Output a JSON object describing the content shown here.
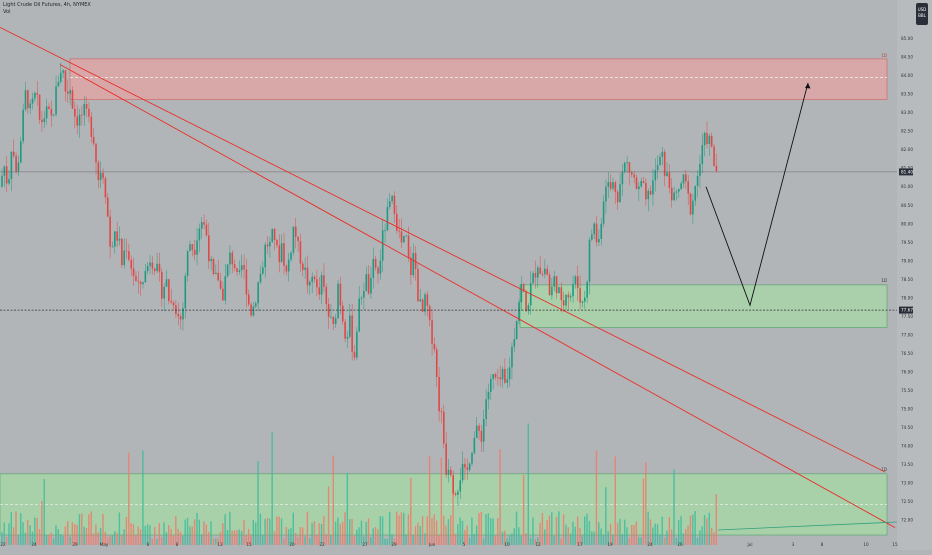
{
  "header": {
    "title": "Light Crude Oil Futures, 4h, NYMEX",
    "indicator": "Vol"
  },
  "currency_badge": {
    "line1": "USD",
    "line2": "BBL"
  },
  "colors": {
    "background": "#b2b5b7",
    "up": "#1e9a82",
    "down": "#e04848",
    "trendline": "#e8302a",
    "supply_zone": "#e8a3a3",
    "demand_zone": "#a6d6a8",
    "volume_up": "#3dbb9c",
    "volume_down": "#f07a6a",
    "projection": "#111111"
  },
  "chart_data": {
    "type": "candlestick",
    "symbol": "Light Crude Oil Futures, 4h, NYMEX",
    "x_labels": [
      "22",
      "24",
      "29",
      "May",
      "6",
      "8",
      "13",
      "15",
      "20",
      "22",
      "27",
      "29",
      "Jun",
      "5",
      "10",
      "12",
      "17",
      "19",
      "24",
      "26",
      "Jul",
      "3",
      "8",
      "10",
      "15",
      "17"
    ],
    "y_ticks": [
      72.0,
      72.5,
      73.0,
      73.5,
      74.0,
      74.5,
      75.0,
      75.5,
      76.0,
      76.5,
      77.0,
      77.5,
      78.0,
      78.5,
      79.0,
      79.5,
      80.0,
      80.5,
      81.0,
      81.5,
      82.0,
      82.5,
      83.0,
      83.5,
      84.0,
      84.5,
      85.0
    ],
    "ylim": [
      71.6,
      85.5
    ],
    "current_price_label": "81.40",
    "horizontal_level_label": "77.67",
    "price_path": [
      [
        0,
        81.0
      ],
      [
        4,
        81.6
      ],
      [
        8,
        81.0
      ],
      [
        12,
        82.3
      ],
      [
        16,
        81.3
      ],
      [
        20,
        82.1
      ],
      [
        26,
        83.6
      ],
      [
        30,
        83.0
      ],
      [
        36,
        83.5
      ],
      [
        40,
        82.7
      ],
      [
        46,
        83.0
      ],
      [
        52,
        82.8
      ],
      [
        58,
        83.9
      ],
      [
        62,
        84.3
      ],
      [
        66,
        83.5
      ],
      [
        70,
        83.7
      ],
      [
        74,
        83.0
      ],
      [
        78,
        82.8
      ],
      [
        84,
        83.0
      ],
      [
        90,
        82.7
      ],
      [
        94,
        82.3
      ],
      [
        98,
        81.2
      ],
      [
        102,
        81.6
      ],
      [
        106,
        80.8
      ],
      [
        110,
        79.4
      ],
      [
        114,
        79.6
      ],
      [
        118,
        79.7
      ],
      [
        122,
        78.9
      ],
      [
        126,
        79.5
      ],
      [
        130,
        79.0
      ],
      [
        134,
        78.6
      ],
      [
        138,
        78.2
      ],
      [
        142,
        78.5
      ],
      [
        146,
        78.7
      ],
      [
        150,
        79.1
      ],
      [
        154,
        79.0
      ],
      [
        158,
        78.6
      ],
      [
        162,
        78.2
      ],
      [
        166,
        78.5
      ],
      [
        170,
        77.8
      ],
      [
        174,
        78.0
      ],
      [
        178,
        77.5
      ],
      [
        182,
        77.4
      ],
      [
        186,
        78.9
      ],
      [
        190,
        79.5
      ],
      [
        194,
        79.3
      ],
      [
        198,
        79.9
      ],
      [
        202,
        80.1
      ],
      [
        206,
        79.8
      ],
      [
        210,
        79.0
      ],
      [
        214,
        78.4
      ],
      [
        218,
        78.6
      ],
      [
        222,
        78.0
      ],
      [
        226,
        78.6
      ],
      [
        230,
        79.1
      ],
      [
        234,
        79.0
      ],
      [
        238,
        78.3
      ],
      [
        242,
        78.9
      ],
      [
        246,
        78.4
      ],
      [
        250,
        77.6
      ],
      [
        254,
        77.8
      ],
      [
        258,
        78.4
      ],
      [
        262,
        78.8
      ],
      [
        266,
        79.5
      ],
      [
        270,
        79.4
      ],
      [
        274,
        79.8
      ],
      [
        278,
        79.0
      ],
      [
        282,
        79.5
      ],
      [
        286,
        78.6
      ],
      [
        290,
        79.2
      ],
      [
        294,
        80.0
      ],
      [
        298,
        79.3
      ],
      [
        302,
        79.0
      ],
      [
        306,
        78.6
      ],
      [
        310,
        78.2
      ],
      [
        314,
        78.8
      ],
      [
        318,
        77.9
      ],
      [
        322,
        78.5
      ],
      [
        326,
        77.8
      ],
      [
        330,
        77.4
      ],
      [
        334,
        77.1
      ],
      [
        338,
        78.4
      ],
      [
        342,
        77.6
      ],
      [
        346,
        77.0
      ],
      [
        350,
        77.3
      ],
      [
        354,
        76.3
      ],
      [
        358,
        77.6
      ],
      [
        362,
        78.2
      ],
      [
        366,
        78.5
      ],
      [
        370,
        78.1
      ],
      [
        374,
        79.0
      ],
      [
        378,
        78.6
      ],
      [
        382,
        79.5
      ],
      [
        386,
        80.1
      ],
      [
        390,
        80.5
      ],
      [
        394,
        80.6
      ],
      [
        398,
        79.8
      ],
      [
        402,
        79.4
      ],
      [
        406,
        79.6
      ],
      [
        410,
        78.6
      ],
      [
        414,
        79.2
      ],
      [
        418,
        78.1
      ],
      [
        422,
        77.5
      ],
      [
        426,
        78.0
      ],
      [
        430,
        77.1
      ],
      [
        434,
        76.9
      ],
      [
        438,
        75.3
      ],
      [
        442,
        74.7
      ],
      [
        446,
        73.4
      ],
      [
        450,
        73.6
      ],
      [
        454,
        72.8
      ],
      [
        458,
        73.0
      ],
      [
        462,
        73.4
      ],
      [
        466,
        73.1
      ],
      [
        470,
        73.8
      ],
      [
        474,
        74.2
      ],
      [
        478,
        74.4
      ],
      [
        482,
        74.3
      ],
      [
        486,
        75.3
      ],
      [
        490,
        75.6
      ],
      [
        494,
        75.9
      ],
      [
        498,
        75.6
      ],
      [
        502,
        75.9
      ],
      [
        506,
        75.5
      ],
      [
        510,
        76.3
      ],
      [
        514,
        77.0
      ],
      [
        518,
        77.8
      ],
      [
        522,
        78.4
      ],
      [
        526,
        77.6
      ],
      [
        530,
        78.2
      ],
      [
        534,
        78.6
      ],
      [
        538,
        79.0
      ],
      [
        542,
        78.6
      ],
      [
        546,
        78.9
      ],
      [
        550,
        78.0
      ],
      [
        554,
        78.5
      ],
      [
        558,
        78.3
      ],
      [
        562,
        77.6
      ],
      [
        566,
        78.3
      ],
      [
        570,
        78.0
      ],
      [
        574,
        78.5
      ],
      [
        578,
        78.3
      ],
      [
        582,
        77.8
      ],
      [
        586,
        78.2
      ],
      [
        590,
        79.6
      ],
      [
        594,
        80.0
      ],
      [
        598,
        79.3
      ],
      [
        602,
        80.4
      ],
      [
        606,
        81.2
      ],
      [
        610,
        80.9
      ],
      [
        614,
        81.1
      ],
      [
        618,
        80.8
      ],
      [
        622,
        81.3
      ],
      [
        626,
        81.7
      ],
      [
        630,
        81.4
      ],
      [
        634,
        81.2
      ],
      [
        638,
        80.8
      ],
      [
        642,
        81.1
      ],
      [
        646,
        80.5
      ],
      [
        650,
        80.9
      ],
      [
        654,
        81.2
      ],
      [
        658,
        81.6
      ],
      [
        662,
        81.8
      ],
      [
        666,
        81.3
      ],
      [
        670,
        81.0
      ],
      [
        674,
        80.6
      ],
      [
        678,
        80.8
      ],
      [
        682,
        81.2
      ],
      [
        686,
        81.0
      ],
      [
        690,
        80.4
      ],
      [
        694,
        80.8
      ],
      [
        698,
        81.4
      ],
      [
        702,
        81.9
      ],
      [
        706,
        82.4
      ],
      [
        710,
        82.2
      ],
      [
        714,
        81.6
      ],
      [
        718,
        81.4
      ]
    ],
    "supply_zone": {
      "price_low": 83.35,
      "price_high": 84.45,
      "price_mid": 83.95,
      "label": "1D"
    },
    "demand_zone": {
      "price_low": 77.2,
      "price_high": 78.35,
      "label": "1D"
    },
    "low_zone": {
      "price_low": 71.6,
      "price_high": 73.25,
      "label": "1D"
    },
    "trendlines": [
      {
        "from": [
          0,
          85.3
        ],
        "to": [
          885,
          73.3
        ]
      },
      {
        "from": [
          60,
          84.3
        ],
        "to": [
          895,
          71.8
        ]
      }
    ],
    "projection_path": [
      [
        706,
        81.0
      ],
      [
        750,
        77.8
      ],
      [
        808,
        83.8
      ]
    ],
    "projection_arrow": true
  }
}
